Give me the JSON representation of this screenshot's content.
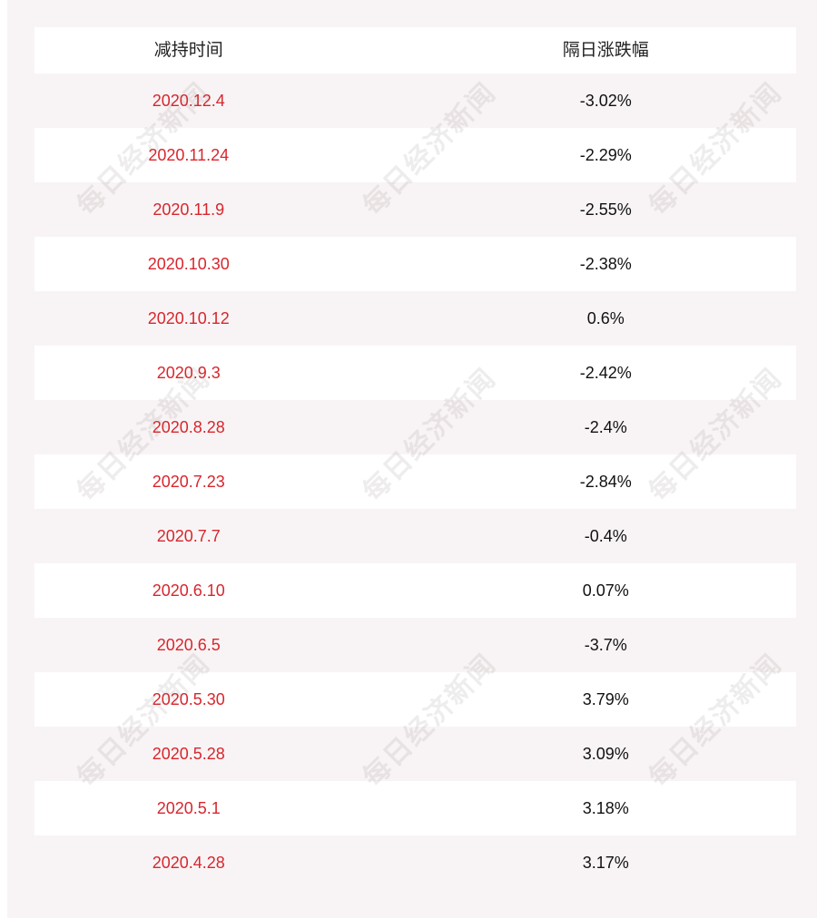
{
  "table": {
    "headers": {
      "date": "减持时间",
      "change": "隔日涨跌幅"
    },
    "rows": [
      {
        "date": "2020.12.4",
        "change": "-3.02%"
      },
      {
        "date": "2020.11.24",
        "change": "-2.29%"
      },
      {
        "date": "2020.11.9",
        "change": "-2.55%"
      },
      {
        "date": "2020.10.30",
        "change": "-2.38%"
      },
      {
        "date": "2020.10.12",
        "change": "0.6%"
      },
      {
        "date": "2020.9.3",
        "change": "-2.42%"
      },
      {
        "date": "2020.8.28",
        "change": "-2.4%"
      },
      {
        "date": "2020.7.23",
        "change": "-2.84%"
      },
      {
        "date": "2020.7.7",
        "change": "-0.4%"
      },
      {
        "date": "2020.6.10",
        "change": "0.07%"
      },
      {
        "date": "2020.6.5",
        "change": "-3.7%"
      },
      {
        "date": "2020.5.30",
        "change": "3.79%"
      },
      {
        "date": "2020.5.28",
        "change": "3.09%"
      },
      {
        "date": "2020.5.1",
        "change": "3.18%"
      },
      {
        "date": "2020.4.28",
        "change": "3.17%"
      }
    ]
  },
  "watermark": {
    "text": "每日经济新闻"
  },
  "colors": {
    "date_text": "#d8262d",
    "change_text": "#111111",
    "panel_background": "#f8f4f5",
    "row_white": "#ffffff"
  }
}
